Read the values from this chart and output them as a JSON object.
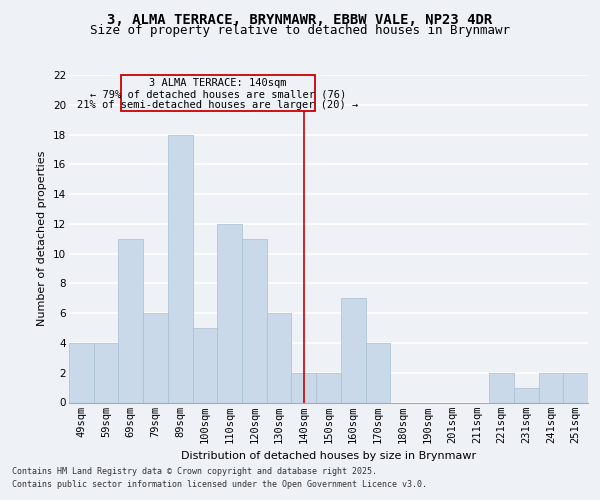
{
  "title1": "3, ALMA TERRACE, BRYNMAWR, EBBW VALE, NP23 4DR",
  "title2": "Size of property relative to detached houses in Brynmawr",
  "xlabel": "Distribution of detached houses by size in Brynmawr",
  "ylabel": "Number of detached properties",
  "categories": [
    "49sqm",
    "59sqm",
    "69sqm",
    "79sqm",
    "89sqm",
    "100sqm",
    "110sqm",
    "120sqm",
    "130sqm",
    "140sqm",
    "150sqm",
    "160sqm",
    "170sqm",
    "180sqm",
    "190sqm",
    "201sqm",
    "211sqm",
    "221sqm",
    "231sqm",
    "241sqm",
    "251sqm"
  ],
  "values": [
    4,
    4,
    11,
    6,
    18,
    5,
    12,
    11,
    6,
    2,
    2,
    7,
    4,
    0,
    0,
    0,
    0,
    2,
    1,
    2,
    2
  ],
  "bar_color": "#c9d9ea",
  "bar_edge_color": "#a8bfcf",
  "ref_line_x": "140sqm",
  "ref_line_color": "#cc0000",
  "annotation_title": "3 ALMA TERRACE: 140sqm",
  "annotation_line1": "← 79% of detached houses are smaller (76)",
  "annotation_line2": "21% of semi-detached houses are larger (20) →",
  "annotation_box_color": "#cc0000",
  "ylim": [
    0,
    22
  ],
  "yticks": [
    0,
    2,
    4,
    6,
    8,
    10,
    12,
    14,
    16,
    18,
    20,
    22
  ],
  "footer1": "Contains HM Land Registry data © Crown copyright and database right 2025.",
  "footer2": "Contains public sector information licensed under the Open Government Licence v3.0.",
  "background_color": "#eef2f7",
  "grid_color": "#dde4ed",
  "title_fontsize": 10,
  "subtitle_fontsize": 9,
  "axis_fontsize": 8,
  "tick_fontsize": 7.5,
  "footer_fontsize": 6.0
}
